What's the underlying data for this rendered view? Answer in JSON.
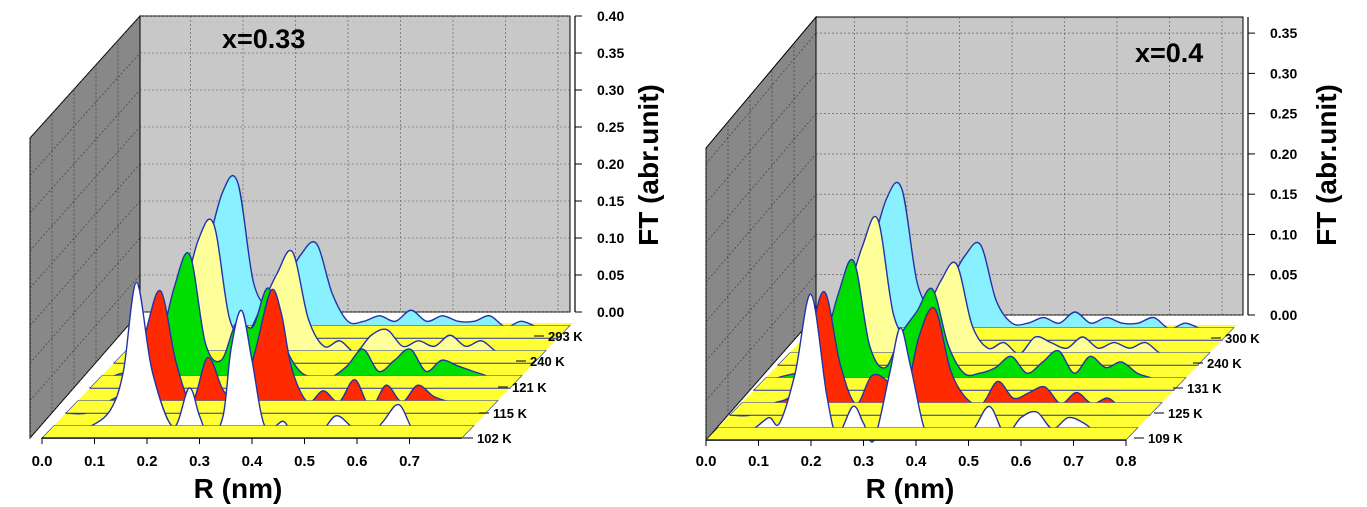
{
  "chart_data": [
    {
      "type": "area",
      "annotation": "x=0.33",
      "xlabel": "R (nm)",
      "ylabel": "FT (abr.unit)",
      "xlim": [
        0.0,
        0.8
      ],
      "ylim": [
        0.0,
        0.4
      ],
      "x_ticks": [
        "0.0",
        "0.1",
        "0.2",
        "0.3",
        "0.4",
        "0.5",
        "0.6",
        "0.7"
      ],
      "y_ticks": [
        "0.00",
        "0.05",
        "0.10",
        "0.15",
        "0.20",
        "0.25",
        "0.30",
        "0.35",
        "0.40"
      ],
      "series": [
        {
          "name": "102 K",
          "color": "#ffffff",
          "x": [
            0.0,
            0.05,
            0.09,
            0.13,
            0.155,
            0.18,
            0.21,
            0.25,
            0.28,
            0.3,
            0.32,
            0.345,
            0.36,
            0.38,
            0.4,
            0.425,
            0.46,
            0.48,
            0.5,
            0.53,
            0.56,
            0.59,
            0.62,
            0.65,
            0.68,
            0.71,
            0.74,
            0.77,
            0.8
          ],
          "y": [
            0.0,
            0.01,
            0.02,
            0.05,
            0.12,
            0.28,
            0.12,
            0.02,
            0.09,
            0.04,
            0.0,
            0.04,
            0.16,
            0.23,
            0.14,
            0.02,
            0.03,
            0.0,
            0.02,
            0.01,
            0.04,
            0.02,
            0.0,
            0.03,
            0.06,
            0.01,
            0.02,
            0.01,
            0.0
          ]
        },
        {
          "name": "115 K",
          "color": "#ff2a00",
          "x": [
            0.0,
            0.04,
            0.08,
            0.12,
            0.15,
            0.18,
            0.21,
            0.24,
            0.27,
            0.3,
            0.33,
            0.36,
            0.39,
            0.41,
            0.43,
            0.46,
            0.49,
            0.52,
            0.55,
            0.58,
            0.61,
            0.64,
            0.67,
            0.7,
            0.73,
            0.76,
            0.8
          ],
          "y": [
            0.0,
            0.0,
            0.02,
            0.05,
            0.14,
            0.22,
            0.09,
            0.02,
            0.1,
            0.04,
            0.02,
            0.11,
            0.22,
            0.18,
            0.08,
            0.02,
            0.04,
            0.02,
            0.06,
            0.01,
            0.05,
            0.02,
            0.05,
            0.03,
            0.02,
            0.01,
            0.0
          ]
        },
        {
          "name": "121 K",
          "color": "#00dd00",
          "x": [
            0.0,
            0.04,
            0.08,
            0.12,
            0.16,
            0.19,
            0.22,
            0.25,
            0.28,
            0.31,
            0.34,
            0.37,
            0.4,
            0.43,
            0.46,
            0.49,
            0.52,
            0.55,
            0.58,
            0.61,
            0.64,
            0.67,
            0.7,
            0.73,
            0.76,
            0.8
          ],
          "y": [
            0.0,
            0.02,
            0.03,
            0.03,
            0.18,
            0.24,
            0.08,
            0.05,
            0.12,
            0.11,
            0.18,
            0.08,
            0.03,
            0.02,
            0.02,
            0.04,
            0.07,
            0.03,
            0.05,
            0.07,
            0.03,
            0.05,
            0.04,
            0.03,
            0.02,
            0.0
          ]
        },
        {
          "name": "240 K",
          "color": "#ffff99",
          "x": [
            0.0,
            0.04,
            0.08,
            0.12,
            0.16,
            0.19,
            0.22,
            0.25,
            0.28,
            0.31,
            0.34,
            0.37,
            0.4,
            0.43,
            0.46,
            0.49,
            0.52,
            0.55,
            0.58,
            0.61,
            0.64,
            0.67,
            0.7,
            0.73,
            0.76,
            0.8
          ],
          "y": [
            0.0,
            0.01,
            0.03,
            0.08,
            0.22,
            0.25,
            0.08,
            0.05,
            0.1,
            0.16,
            0.2,
            0.08,
            0.03,
            0.04,
            0.02,
            0.05,
            0.06,
            0.03,
            0.04,
            0.03,
            0.05,
            0.03,
            0.04,
            0.02,
            0.02,
            0.0
          ]
        },
        {
          "name": "293 K",
          "color": "#88f0ff",
          "x": [
            0.0,
            0.04,
            0.08,
            0.12,
            0.16,
            0.19,
            0.22,
            0.25,
            0.28,
            0.31,
            0.34,
            0.37,
            0.4,
            0.43,
            0.46,
            0.49,
            0.52,
            0.55,
            0.58,
            0.61,
            0.64,
            0.67,
            0.7,
            0.73,
            0.76,
            0.8
          ],
          "y": [
            0.0,
            0.01,
            0.04,
            0.12,
            0.26,
            0.28,
            0.1,
            0.06,
            0.1,
            0.15,
            0.17,
            0.08,
            0.03,
            0.03,
            0.04,
            0.03,
            0.05,
            0.03,
            0.04,
            0.03,
            0.03,
            0.04,
            0.02,
            0.03,
            0.02,
            0.01
          ]
        }
      ]
    },
    {
      "type": "area",
      "annotation": "x=0.4",
      "xlabel": "R (nm)",
      "ylabel": "FT (abr.unit)",
      "xlim": [
        0.0,
        0.8
      ],
      "ylim": [
        0.0,
        0.37
      ],
      "x_ticks": [
        "0.0",
        "0.1",
        "0.2",
        "0.3",
        "0.4",
        "0.5",
        "0.6",
        "0.7",
        "0.8"
      ],
      "y_ticks": [
        "0.00",
        "0.05",
        "0.10",
        "0.15",
        "0.20",
        "0.25",
        "0.30",
        "0.35"
      ],
      "series": [
        {
          "name": "109 K",
          "color": "#ffffff",
          "x": [
            0.0,
            0.05,
            0.09,
            0.12,
            0.14,
            0.17,
            0.2,
            0.23,
            0.25,
            0.28,
            0.3,
            0.32,
            0.35,
            0.37,
            0.39,
            0.42,
            0.45,
            0.48,
            0.51,
            0.54,
            0.57,
            0.6,
            0.63,
            0.66,
            0.69,
            0.72,
            0.75,
            0.8
          ],
          "y": [
            0.0,
            0.01,
            0.02,
            0.04,
            0.03,
            0.12,
            0.26,
            0.08,
            0.01,
            0.06,
            0.03,
            0.0,
            0.12,
            0.2,
            0.13,
            0.01,
            0.02,
            0.0,
            0.02,
            0.06,
            0.01,
            0.04,
            0.05,
            0.02,
            0.04,
            0.03,
            0.01,
            0.0
          ]
        },
        {
          "name": "125 K",
          "color": "#ff2a00",
          "x": [
            0.0,
            0.04,
            0.08,
            0.12,
            0.15,
            0.18,
            0.21,
            0.24,
            0.27,
            0.3,
            0.33,
            0.36,
            0.39,
            0.42,
            0.45,
            0.48,
            0.51,
            0.54,
            0.57,
            0.6,
            0.63,
            0.66,
            0.69,
            0.72,
            0.75,
            0.8
          ],
          "y": [
            0.0,
            0.0,
            0.02,
            0.04,
            0.13,
            0.22,
            0.09,
            0.02,
            0.07,
            0.06,
            0.02,
            0.14,
            0.19,
            0.08,
            0.03,
            0.02,
            0.06,
            0.03,
            0.04,
            0.05,
            0.02,
            0.04,
            0.02,
            0.03,
            0.01,
            0.0
          ]
        },
        {
          "name": "131 K",
          "color": "#00dd00",
          "x": [
            0.0,
            0.04,
            0.08,
            0.12,
            0.16,
            0.19,
            0.22,
            0.25,
            0.28,
            0.31,
            0.34,
            0.37,
            0.4,
            0.43,
            0.46,
            0.49,
            0.52,
            0.55,
            0.58,
            0.61,
            0.64,
            0.67,
            0.7,
            0.73,
            0.76,
            0.8
          ],
          "y": [
            0.0,
            0.02,
            0.03,
            0.04,
            0.17,
            0.23,
            0.08,
            0.04,
            0.1,
            0.14,
            0.18,
            0.08,
            0.03,
            0.03,
            0.04,
            0.06,
            0.03,
            0.05,
            0.07,
            0.03,
            0.06,
            0.04,
            0.05,
            0.03,
            0.02,
            0.0
          ]
        },
        {
          "name": "240 K",
          "color": "#ffff99",
          "x": [
            0.0,
            0.04,
            0.08,
            0.12,
            0.16,
            0.19,
            0.22,
            0.25,
            0.28,
            0.31,
            0.34,
            0.37,
            0.4,
            0.43,
            0.46,
            0.49,
            0.52,
            0.55,
            0.58,
            0.61,
            0.64,
            0.67,
            0.7,
            0.73,
            0.76,
            0.8
          ],
          "y": [
            0.0,
            0.01,
            0.03,
            0.09,
            0.21,
            0.26,
            0.09,
            0.05,
            0.09,
            0.15,
            0.18,
            0.07,
            0.03,
            0.04,
            0.02,
            0.05,
            0.04,
            0.03,
            0.05,
            0.03,
            0.04,
            0.03,
            0.04,
            0.02,
            0.02,
            0.0
          ]
        },
        {
          "name": "300 K",
          "color": "#88f0ff",
          "x": [
            0.0,
            0.04,
            0.08,
            0.12,
            0.16,
            0.19,
            0.22,
            0.25,
            0.28,
            0.31,
            0.34,
            0.37,
            0.4,
            0.43,
            0.46,
            0.49,
            0.52,
            0.55,
            0.58,
            0.61,
            0.64,
            0.67,
            0.7,
            0.73,
            0.76,
            0.8
          ],
          "y": [
            0.0,
            0.01,
            0.04,
            0.12,
            0.25,
            0.27,
            0.1,
            0.06,
            0.1,
            0.15,
            0.17,
            0.07,
            0.03,
            0.03,
            0.04,
            0.03,
            0.05,
            0.03,
            0.04,
            0.03,
            0.03,
            0.04,
            0.02,
            0.03,
            0.02,
            0.01
          ]
        }
      ]
    }
  ]
}
